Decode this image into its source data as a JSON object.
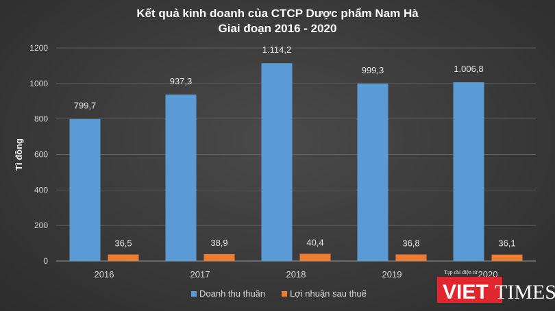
{
  "chart_data": {
    "type": "bar",
    "title_lines": [
      "Kết quả kinh doanh của CTCP Dược phẩm Nam Hà",
      "Giai đoạn 2016 - 2020"
    ],
    "xlabel": "",
    "ylabel": "Tỉ đồng",
    "ylim": [
      0,
      1200
    ],
    "yticks": [
      "0",
      "200",
      "400",
      "600",
      "800",
      "1000",
      "1200"
    ],
    "ytick_values": [
      0,
      200,
      400,
      600,
      800,
      1000,
      1200
    ],
    "grid": true,
    "legend_position": "bottom",
    "categories": [
      "2016",
      "2017",
      "2018",
      "2019",
      "2020"
    ],
    "series": [
      {
        "name": "Doanh thu thuần",
        "color": "#5b9bd5",
        "values": [
          799.7,
          937.3,
          1114.2,
          999.3,
          1006.8
        ],
        "labels": [
          "799,7",
          "937,3",
          "1.114,2",
          "999,3",
          "1.006,8"
        ]
      },
      {
        "name": "Lợi nhuận sau thuế",
        "color": "#ed7d31",
        "values": [
          36.5,
          38.9,
          40.4,
          36.8,
          36.1
        ],
        "labels": [
          "36,5",
          "38,9",
          "40,4",
          "36,8",
          "36,1"
        ]
      }
    ]
  },
  "watermark": {
    "brand_part1": "VIET",
    "brand_part2": "TIMES",
    "tagline": "Tạp chí điện tử",
    "color": "#e0262f"
  }
}
